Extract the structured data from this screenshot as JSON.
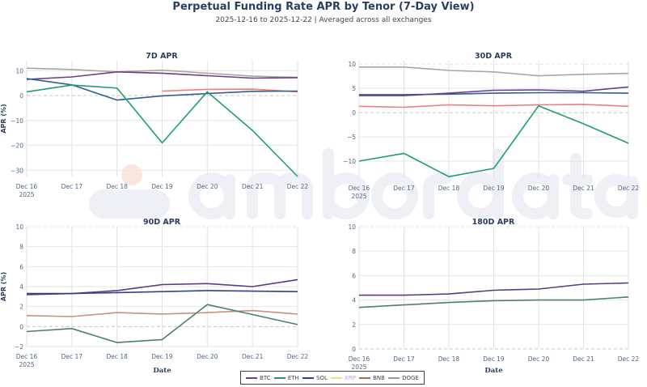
{
  "header": {
    "title": "Perpetual Funding Rate APR by Tenor (7-Day View)",
    "subtitle": "2025-12-16 to 2025-12-22 | Averaged across all exchanges"
  },
  "watermark": "amberdata",
  "legend": [
    {
      "name": "BTC",
      "color": "#6b3d8c"
    },
    {
      "name": "ETH",
      "color": "#2f8f74"
    },
    {
      "name": "SOL",
      "color": "#2e3f8f"
    },
    {
      "name": "XRP",
      "color": "#f0e080"
    },
    {
      "name": "BNB",
      "color": "#a07050"
    },
    {
      "name": "DOGE",
      "color": "#999999"
    }
  ],
  "chart_data": [
    {
      "type": "line",
      "title": "7D APR",
      "xlabel": "",
      "ylabel": "APR (%)",
      "categories": [
        "Dec 16\n2025",
        "Dec 17",
        "Dec 18",
        "Dec 19",
        "Dec 20",
        "Dec 21",
        "Dec 22"
      ],
      "ylim": [
        -32.5,
        14
      ],
      "yticks": [
        "−30",
        "−20",
        "−10",
        "0",
        "10"
      ],
      "ytick_values": [
        -30,
        -20,
        -10,
        0,
        10
      ],
      "grid": true,
      "series": [
        {
          "name": "DOGE",
          "color": "#a8a89c",
          "values": [
            11,
            10.5,
            9.5,
            10.2,
            9,
            7.8,
            7.3
          ]
        },
        {
          "name": "BTC",
          "color": "#6b3d8c",
          "values": [
            6.5,
            7.5,
            9.5,
            9,
            8,
            7,
            7.2
          ]
        },
        {
          "name": "BNB",
          "color": "#f47c7c",
          "values": [
            null,
            null,
            null,
            1.8,
            2.5,
            2.6,
            1.5
          ]
        },
        {
          "name": "SOL",
          "color": "#2f6090",
          "values": [
            6.8,
            4.3,
            -1.8,
            -0.1,
            0.8,
            1.7,
            1.8
          ]
        },
        {
          "name": "ETH",
          "color": "#1f9e74",
          "values": [
            1.5,
            4.2,
            3,
            -19,
            1.5,
            -14,
            -32.5
          ]
        }
      ]
    },
    {
      "type": "line",
      "title": "30D APR",
      "xlabel": "",
      "ylabel": "",
      "categories": [
        "Dec 16\n2025",
        "Dec 17",
        "Dec 18",
        "Dec 19",
        "Dec 20",
        "Dec 21",
        "Dec 22"
      ],
      "ylim": [
        -13.5,
        10.7
      ],
      "yticks": [
        "−10",
        "−5",
        "0",
        "5",
        "10"
      ],
      "ytick_values": [
        -10,
        -5,
        0,
        5,
        10
      ],
      "grid": true,
      "series": [
        {
          "name": "DOGE",
          "color": "#a8a89c",
          "values": [
            9.4,
            9.4,
            8.7,
            8.4,
            7.6,
            7.9,
            8.1
          ]
        },
        {
          "name": "SOL",
          "color": "#2f6090",
          "values": [
            3.7,
            3.7,
            3.8,
            4.0,
            4.1,
            4.1,
            4.0
          ]
        },
        {
          "name": "BTC",
          "color": "#6b3d8c",
          "values": [
            3.5,
            3.5,
            4.0,
            4.6,
            4.7,
            4.4,
            5.3
          ]
        },
        {
          "name": "BNB",
          "color": "#f47c7c",
          "values": [
            1.3,
            1.1,
            1.6,
            1.4,
            1.6,
            1.7,
            1.3
          ]
        },
        {
          "name": "ETH",
          "color": "#1f9e74",
          "values": [
            -10,
            -8.4,
            -13.2,
            -11.5,
            1.4,
            -2.3,
            -6.3
          ]
        }
      ]
    },
    {
      "type": "line",
      "title": "90D APR",
      "xlabel": "Date",
      "ylabel": "APR (%)",
      "categories": [
        "Dec 16\n2025",
        "Dec 17",
        "Dec 18",
        "Dec 19",
        "Dec 20",
        "Dec 21",
        "Dec 22"
      ],
      "ylim": [
        -2,
        10
      ],
      "yticks": [
        "−2",
        "0",
        "2",
        "4",
        "6",
        "8",
        "10"
      ],
      "ytick_values": [
        -2,
        0,
        2,
        4,
        6,
        8,
        10
      ],
      "grid": true,
      "series": [
        {
          "name": "BTC",
          "color": "#5a3a80",
          "values": [
            3.2,
            3.3,
            3.6,
            4.2,
            4.3,
            4.0,
            4.7
          ]
        },
        {
          "name": "SOL",
          "color": "#34408a",
          "values": [
            3.3,
            3.3,
            3.4,
            3.5,
            3.6,
            3.55,
            3.5
          ]
        },
        {
          "name": "BNB",
          "color": "#c99478",
          "values": [
            1.1,
            1.0,
            1.4,
            1.25,
            1.4,
            1.6,
            1.25
          ]
        },
        {
          "name": "ETH",
          "color": "#4a8070",
          "values": [
            -0.5,
            -0.2,
            -1.6,
            -1.3,
            2.2,
            1.2,
            0.2
          ]
        }
      ]
    },
    {
      "type": "line",
      "title": "180D APR",
      "xlabel": "Date",
      "ylabel": "",
      "categories": [
        "Dec 16\n2025",
        "Dec 17",
        "Dec 18",
        "Dec 19",
        "Dec 20",
        "Dec 21",
        "Dec 22"
      ],
      "ylim": [
        0,
        10
      ],
      "yticks": [
        "0",
        "2",
        "4",
        "6",
        "8",
        "10"
      ],
      "ytick_values": [
        0,
        2,
        4,
        6,
        8,
        10
      ],
      "grid": true,
      "series": [
        {
          "name": "BTC",
          "color": "#5a3a80",
          "values": [
            4.4,
            4.4,
            4.5,
            4.8,
            4.9,
            5.3,
            5.4
          ]
        },
        {
          "name": "ETH",
          "color": "#4a8070",
          "values": [
            3.4,
            3.6,
            3.8,
            3.95,
            4.0,
            4.0,
            4.25
          ]
        }
      ]
    }
  ]
}
